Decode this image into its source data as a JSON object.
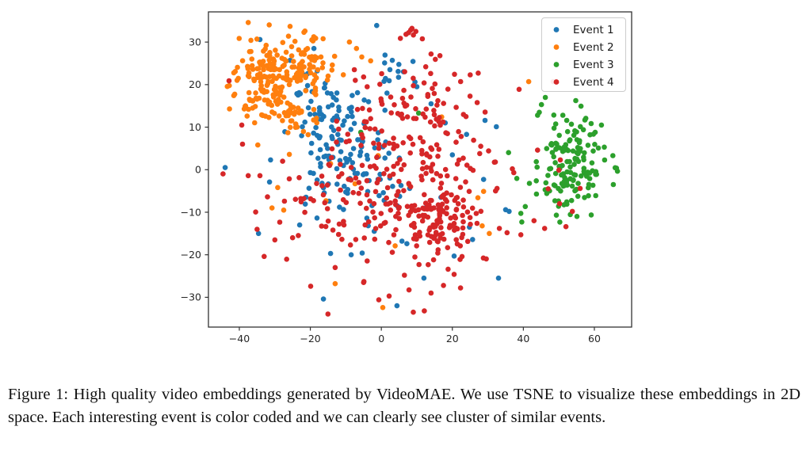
{
  "caption": {
    "text": "Figure 1: High quality video embeddings generated by VideoMAE. We use TSNE to visualize these embeddings in 2D space. Each interesting event is color coded and we can clearly see cluster of similar events."
  },
  "chart_data": {
    "type": "scatter",
    "title": "",
    "xlabel": "",
    "ylabel": "",
    "xlim": [
      -48.7,
      70.5
    ],
    "ylim": [
      -37.0,
      37.1
    ],
    "xticks": [
      -40,
      -20,
      0,
      20,
      40,
      60
    ],
    "yticks": [
      -30,
      -20,
      -10,
      0,
      10,
      20,
      30
    ],
    "grid": false,
    "legend_position": "upper-right",
    "marker_size_px": 3.3,
    "axis_color": "#333333",
    "tick_label_color": "#262626",
    "legend_border_color": "#cccccc",
    "series": [
      {
        "name": "Event 1",
        "color": "#1f77b4",
        "clusters": [
          {
            "center": [
              -13,
              9
            ],
            "sigma": [
              6,
              6
            ],
            "n": 75,
            "seed": 11
          },
          {
            "center": [
              -7,
              -1
            ],
            "sigma": [
              6.5,
              5
            ],
            "n": 60,
            "seed": 12
          },
          {
            "center": [
              2.8,
              23
            ],
            "sigma": [
              2.6,
              1.8
            ],
            "n": 14,
            "seed": 13
          },
          {
            "center": [
              -17,
              14
            ],
            "sigma": [
              4,
              4
            ],
            "n": 20,
            "seed": 14
          }
        ],
        "points": [
          [
            -34.2,
            30.6
          ],
          [
            -25.7,
            25.7
          ],
          [
            -19,
            28.5
          ],
          [
            -1.3,
            33.9
          ],
          [
            -31.2,
            2.3
          ],
          [
            -31.5,
            -2.9
          ],
          [
            -34.6,
            -15
          ],
          [
            -44,
            0.5
          ],
          [
            24,
            8.3
          ],
          [
            29.2,
            11.6
          ],
          [
            32.4,
            10.1
          ],
          [
            28.8,
            -2.3
          ],
          [
            35,
            -9.4
          ],
          [
            36,
            -9.8
          ],
          [
            24.8,
            -13.5
          ],
          [
            25.7,
            -16.4
          ],
          [
            5.8,
            -16.8
          ],
          [
            7.2,
            -17.4
          ],
          [
            -8.5,
            -20
          ],
          [
            -5.4,
            -19.6
          ],
          [
            -16.3,
            -30.4
          ],
          [
            -14.3,
            -19.7
          ],
          [
            12,
            -25.5
          ],
          [
            20.5,
            -20.3
          ],
          [
            33,
            -25.5
          ],
          [
            4.4,
            -32
          ],
          [
            12.7,
            -8.8
          ],
          [
            4.5,
            -8.5
          ],
          [
            16.8,
            -6.5
          ],
          [
            20,
            3.5
          ],
          [
            18,
            11
          ],
          [
            14,
            15.5
          ],
          [
            10,
            19.5
          ],
          [
            -2,
            -14.5
          ],
          [
            -23,
            -13
          ]
        ]
      },
      {
        "name": "Event 2",
        "color": "#ff7f0e",
        "clusters": [
          {
            "center": [
              -32.5,
              21
            ],
            "sigma": [
              4.8,
              5.2
            ],
            "n": 150,
            "seed": 21
          },
          {
            "center": [
              -22,
              25.5
            ],
            "sigma": [
              3.6,
              3.4
            ],
            "n": 70,
            "seed": 22
          },
          {
            "center": [
              -27,
              12.5
            ],
            "sigma": [
              4,
              2.5
            ],
            "n": 25,
            "seed": 23
          }
        ],
        "points": [
          [
            -25.7,
            33.7
          ],
          [
            -18.5,
            30.9
          ],
          [
            -17,
            26.5
          ],
          [
            -15,
            22
          ],
          [
            -13.8,
            24.6
          ],
          [
            -9,
            30
          ],
          [
            -7,
            28.5
          ],
          [
            -5.5,
            26.5
          ],
          [
            -3,
            25.6
          ],
          [
            -34.8,
            5.8
          ],
          [
            -29.2,
            -4.2
          ],
          [
            -30.8,
            -9
          ],
          [
            -27.5,
            -9.5
          ],
          [
            -15.6,
            -7.3
          ],
          [
            -25.9,
            3.6
          ],
          [
            -14.3,
            1.4
          ],
          [
            -0.9,
            3.3
          ],
          [
            -7.4,
            -3.3
          ],
          [
            -18.3,
            12.1
          ],
          [
            7.8,
            -3.5
          ],
          [
            17,
            12.4
          ],
          [
            27.2,
            -6.6
          ],
          [
            28.8,
            -5.1
          ],
          [
            28.4,
            -13.2
          ],
          [
            30.4,
            -15
          ],
          [
            0.4,
            -32.4
          ],
          [
            3.9,
            -17.9
          ],
          [
            41.5,
            20.7
          ],
          [
            -13,
            -26.8
          ]
        ]
      },
      {
        "name": "Event 3",
        "color": "#2ca02c",
        "clusters": [
          {
            "center": [
              53,
              0
            ],
            "sigma": [
              5.2,
              5.2
            ],
            "n": 135,
            "seed": 31
          },
          {
            "center": [
              56,
              9
            ],
            "sigma": [
              3.5,
              2.5
            ],
            "n": 18,
            "seed": 32
          }
        ],
        "points": [
          [
            -5.8,
            8.8
          ],
          [
            10.5,
            13.3
          ],
          [
            46.2,
            17
          ],
          [
            45.1,
            15.3
          ],
          [
            44.5,
            13.5
          ],
          [
            44,
            12.8
          ],
          [
            62,
            10.5
          ],
          [
            65.2,
            3.3
          ],
          [
            41.7,
            -3.2
          ],
          [
            49.3,
            -10.7
          ]
        ]
      },
      {
        "name": "Event 4",
        "color": "#d62728",
        "clusters": [
          {
            "center": [
              17.5,
              -11.5
            ],
            "sigma": [
              4.8,
              5.0
            ],
            "n": 115,
            "seed": 41
          },
          {
            "center": [
              3,
              3
            ],
            "sigma": [
              12,
              9
            ],
            "n": 125,
            "seed": 42
          },
          {
            "center": [
              -4,
              -11
            ],
            "sigma": [
              15,
              8
            ],
            "n": 80,
            "seed": 43
          },
          {
            "center": [
              12,
              13
            ],
            "sigma": [
              9,
              7
            ],
            "n": 60,
            "seed": 44
          },
          {
            "center": [
              7.6,
              31.3
            ],
            "sigma": [
              1.8,
              1.1
            ],
            "n": 8,
            "seed": 45
          }
        ],
        "points": [
          [
            -42.9,
            20.9
          ],
          [
            -39.3,
            10.5
          ],
          [
            -39.1,
            6
          ],
          [
            -37.5,
            -1.4
          ],
          [
            -34.2,
            -1.4
          ],
          [
            -44.6,
            -1
          ],
          [
            -35,
            -14
          ],
          [
            -33,
            -20.4
          ],
          [
            -30,
            -16.5
          ],
          [
            -25,
            -16
          ],
          [
            -19.9,
            -27.4
          ],
          [
            -13,
            -23
          ],
          [
            -4.9,
            -26.3
          ],
          [
            -0.7,
            -30.6
          ],
          [
            12.1,
            -33.2
          ],
          [
            9,
            -33.5
          ],
          [
            14,
            -29
          ],
          [
            20.5,
            -24.6
          ],
          [
            6.5,
            -24.8
          ],
          [
            2.2,
            -29.7
          ],
          [
            38.8,
            18.9
          ],
          [
            48.4,
            20.7
          ],
          [
            44,
            4.6
          ],
          [
            37.3,
            -0.7
          ],
          [
            36.9,
            0.2
          ],
          [
            39.3,
            -15.3
          ],
          [
            43,
            -12
          ],
          [
            50.2,
            -8
          ],
          [
            47,
            -4.5
          ],
          [
            52,
            -13.4
          ],
          [
            46,
            -13.8
          ],
          [
            50.4,
            2.3
          ],
          [
            50,
            -0.1
          ],
          [
            56,
            -4.4
          ],
          [
            53.8,
            -9.8
          ],
          [
            14,
            27.2
          ],
          [
            16.5,
            26.8
          ],
          [
            -7.6,
            23.5
          ],
          [
            -5,
            21.8
          ],
          [
            -4,
            19.5
          ],
          [
            28,
            5.5
          ],
          [
            30.2,
            4.4
          ],
          [
            32.1,
            1.8
          ],
          [
            27.7,
            3.8
          ],
          [
            32.6,
            -4.4
          ],
          [
            35.4,
            -14.8
          ],
          [
            22.3,
            -27.8
          ],
          [
            17.5,
            -27.2
          ]
        ]
      }
    ]
  }
}
